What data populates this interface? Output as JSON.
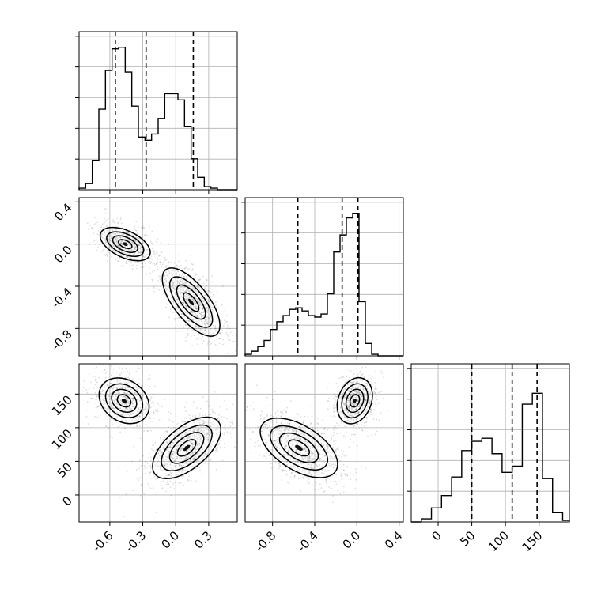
{
  "chart_data": [
    {
      "panel": "hist-p0",
      "type": "step-histogram",
      "xlim": [
        -0.88,
        0.56
      ],
      "ylim": [
        0,
        1
      ],
      "bin_edges": [
        -0.88,
        -0.82,
        -0.76,
        -0.7,
        -0.64,
        -0.58,
        -0.52,
        -0.46,
        -0.4,
        -0.34,
        -0.28,
        -0.22,
        -0.16,
        -0.1,
        -0.04,
        0.02,
        0.08,
        0.14,
        0.2,
        0.26,
        0.32,
        0.38,
        0.44,
        0.5,
        0.56
      ],
      "counts": [
        0.01,
        0.04,
        0.19,
        0.52,
        0.77,
        0.91,
        0.92,
        0.76,
        0.54,
        0.34,
        0.32,
        0.36,
        0.46,
        0.62,
        0.62,
        0.58,
        0.41,
        0.2,
        0.08,
        0.02,
        0.01,
        0.0,
        0.0,
        0.0
      ],
      "quantiles": [
        -0.55,
        -0.27,
        0.16
      ],
      "x_tick_labels": [
        "-0.6",
        "-0.3",
        "0.0",
        "0.3"
      ]
    },
    {
      "panel": "hist-p1",
      "type": "step-histogram",
      "xlim": [
        -1.06,
        0.44
      ],
      "ylim": [
        0,
        1
      ],
      "bin_edges": [
        -1.06,
        -1.0,
        -0.94,
        -0.88,
        -0.82,
        -0.76,
        -0.7,
        -0.64,
        -0.58,
        -0.52,
        -0.46,
        -0.4,
        -0.34,
        -0.28,
        -0.22,
        -0.16,
        -0.1,
        -0.04,
        0.02,
        0.08,
        0.14,
        0.2,
        0.26,
        0.32,
        0.38,
        0.44
      ],
      "counts": [
        0.01,
        0.03,
        0.06,
        0.1,
        0.17,
        0.22,
        0.26,
        0.3,
        0.31,
        0.29,
        0.26,
        0.25,
        0.27,
        0.4,
        0.67,
        0.78,
        0.89,
        0.92,
        0.35,
        0.08,
        0.01,
        0.0,
        0.0,
        0.0,
        0.0
      ],
      "quantiles": [
        -0.56,
        -0.14,
        0.01
      ],
      "x_tick_labels": [
        "-0.8",
        "-0.4",
        "0.0",
        "0.4"
      ],
      "y_tick_labels_left_panel": [
        "0.4",
        "0.0",
        "-0.4",
        "-0.8"
      ]
    },
    {
      "panel": "hist-p2",
      "type": "step-histogram",
      "xlim": [
        -40,
        195
      ],
      "ylim": [
        0,
        1
      ],
      "bin_edges": [
        -40,
        -25,
        -10,
        5,
        20,
        35,
        50,
        65,
        80,
        95,
        110,
        125,
        140,
        155,
        170,
        185,
        195
      ],
      "counts": [
        0.0,
        0.02,
        0.09,
        0.17,
        0.29,
        0.46,
        0.52,
        0.54,
        0.44,
        0.32,
        0.36,
        0.76,
        0.83,
        0.28,
        0.06,
        0.01
      ],
      "quantiles": [
        50,
        110,
        147
      ],
      "x_tick_labels": [
        "0",
        "50",
        "100",
        "150"
      ],
      "y_tick_labels_left_panel": [
        "150",
        "100",
        "50",
        "0"
      ]
    },
    {
      "panel": "contour-p1-vs-p0",
      "type": "2d-density",
      "x_param_range": [
        -0.88,
        0.56
      ],
      "y_param_range": [
        -1.06,
        0.44
      ],
      "modes": [
        {
          "x": -0.46,
          "y": 0.0,
          "weight": "higher"
        },
        {
          "x": 0.14,
          "y": -0.55,
          "weight": "lower"
        }
      ]
    },
    {
      "panel": "contour-p2-vs-p0",
      "type": "2d-density",
      "x_param_range": [
        -0.88,
        0.56
      ],
      "y_param_range": [
        -40,
        195
      ],
      "modes": [
        {
          "x": -0.47,
          "y": 140,
          "weight": "higher"
        },
        {
          "x": 0.1,
          "y": 70,
          "weight": "lower"
        }
      ]
    },
    {
      "panel": "contour-p2-vs-p1",
      "type": "2d-density",
      "x_param_range": [
        -1.06,
        0.44
      ],
      "y_param_range": [
        -40,
        195
      ],
      "modes": [
        {
          "x": -0.02,
          "y": 140,
          "weight": "higher"
        },
        {
          "x": -0.55,
          "y": 70,
          "weight": "lower"
        }
      ]
    }
  ]
}
